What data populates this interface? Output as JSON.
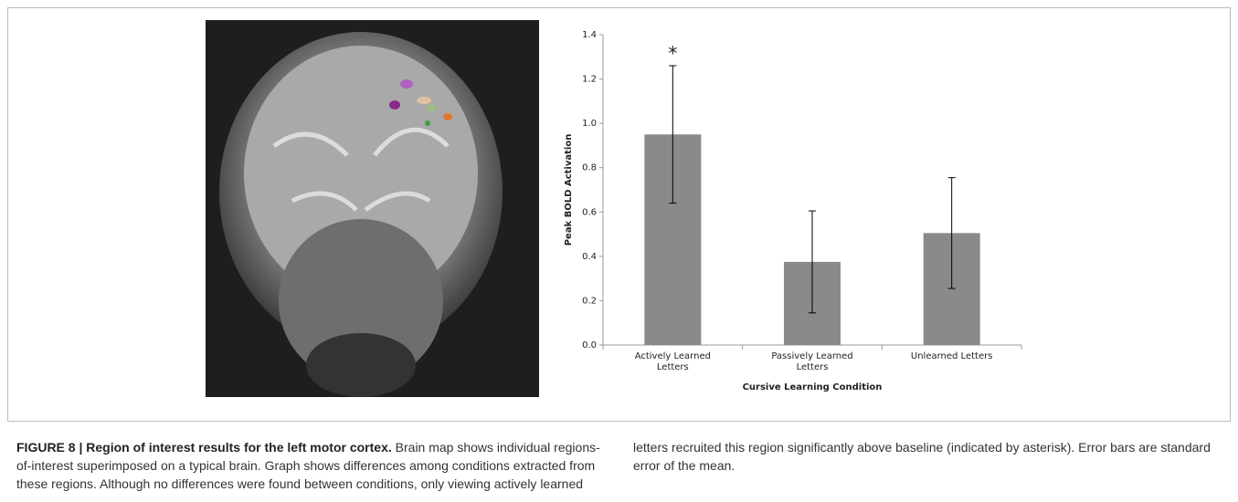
{
  "chart_data": {
    "type": "bar",
    "categories": [
      "Actively Learned Letters",
      "Passively Learned Letters",
      "Unlearned Letters"
    ],
    "values": [
      0.95,
      0.375,
      0.505
    ],
    "errors": [
      0.31,
      0.23,
      0.25
    ],
    "color": "#8a8a8a",
    "ylim": [
      0,
      1.4
    ],
    "yticks": [
      {
        "value": 0,
        "label": "0.0"
      },
      0.2,
      0.4,
      0.6,
      0.8,
      {
        "value": 1,
        "label": "1.0"
      },
      1.2,
      1.4
    ],
    "ylabel": "Peak BOLD Activation",
    "xlabel": "Cursive Learning Condition",
    "annotation": "*"
  },
  "caption": {
    "title": "FIGURE 8 | Region of interest results for the left motor cortex.",
    "body": "Brain map shows individual regions-of-interest superimposed on a typical brain. Graph shows differences among conditions extracted from these regions. Although no differences were found between conditions, only viewing actively learned letters recruited this region significantly above baseline (indicated by asterisk). Error bars are standard error of the mean."
  }
}
